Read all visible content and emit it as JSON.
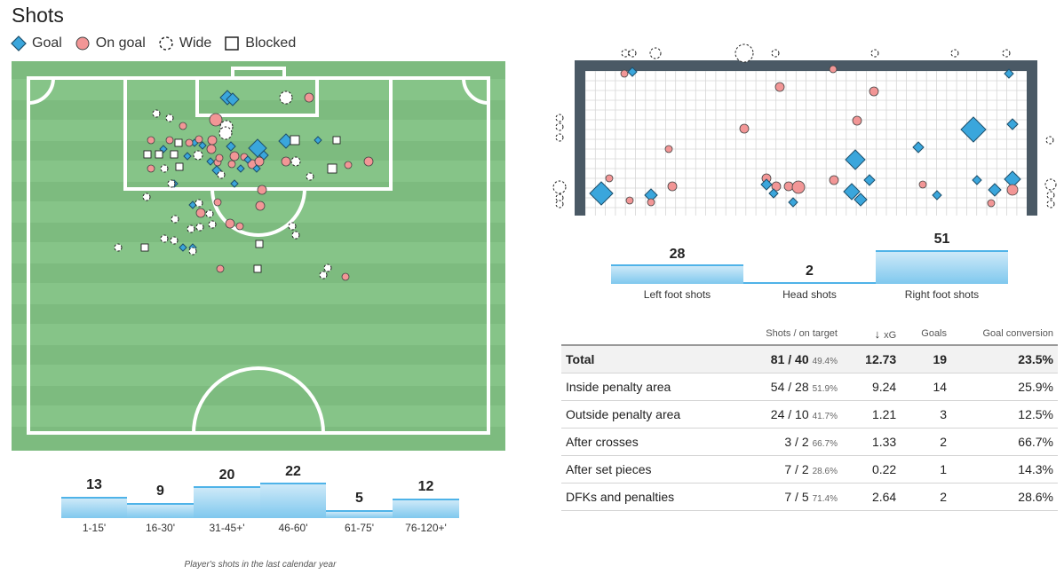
{
  "header": {
    "title": "Shots"
  },
  "legend": [
    {
      "label": "Goal",
      "icon": "goal-diamond-icon"
    },
    {
      "label": "On goal",
      "icon": "on-goal-circle-icon"
    },
    {
      "label": "Wide",
      "icon": "wide-dashed-circle-icon"
    },
    {
      "label": "Blocked",
      "icon": "blocked-square-icon"
    }
  ],
  "colors": {
    "pitch": "#86c488",
    "stripe": "#7dbb7f",
    "goal": "#3aa6dc",
    "on_goal": "#f29696",
    "line": "#ffffff",
    "frame": "#4a5965",
    "bar": "#8fd0f2"
  },
  "time_bars": {
    "items": [
      {
        "label": "1-15'",
        "value": "13"
      },
      {
        "label": "16-30'",
        "value": "9"
      },
      {
        "label": "31-45+'",
        "value": "20"
      },
      {
        "label": "46-60'",
        "value": "22"
      },
      {
        "label": "61-75'",
        "value": "5"
      },
      {
        "label": "76-120+'",
        "value": "12"
      }
    ],
    "caption": "Player's shots in the last calendar year"
  },
  "body_bars": {
    "items": [
      {
        "label": "Left foot shots",
        "value": "28"
      },
      {
        "label": "Head shots",
        "value": "2"
      },
      {
        "label": "Right foot shots",
        "value": "51"
      }
    ]
  },
  "stats_table": {
    "columns": {
      "shots": "Shots / on target",
      "xg": "xG",
      "goals": "Goals",
      "conversion": "Goal conversion",
      "sort_arrow": "↓"
    },
    "rows": [
      {
        "label": "Total",
        "shots": "81 / 40",
        "pct": "49.4%",
        "xg": "12.73",
        "goals": "19",
        "conversion": "23.5%"
      },
      {
        "label": "Inside penalty area",
        "shots": "54 / 28",
        "pct": "51.9%",
        "xg": "9.24",
        "goals": "14",
        "conversion": "25.9%"
      },
      {
        "label": "Outside penalty area",
        "shots": "24 / 10",
        "pct": "41.7%",
        "xg": "1.21",
        "goals": "3",
        "conversion": "12.5%"
      },
      {
        "label": "After crosses",
        "shots": "3 / 2",
        "pct": "66.7%",
        "xg": "1.33",
        "goals": "2",
        "conversion": "66.7%"
      },
      {
        "label": "After set pieces",
        "shots": "7 / 2",
        "pct": "28.6%",
        "xg": "0.22",
        "goals": "1",
        "conversion": "14.3%"
      },
      {
        "label": "DFKs and penalties",
        "shots": "7 / 5",
        "pct": "71.4%",
        "xg": "2.64",
        "goals": "2",
        "conversion": "28.6%"
      }
    ]
  }
}
